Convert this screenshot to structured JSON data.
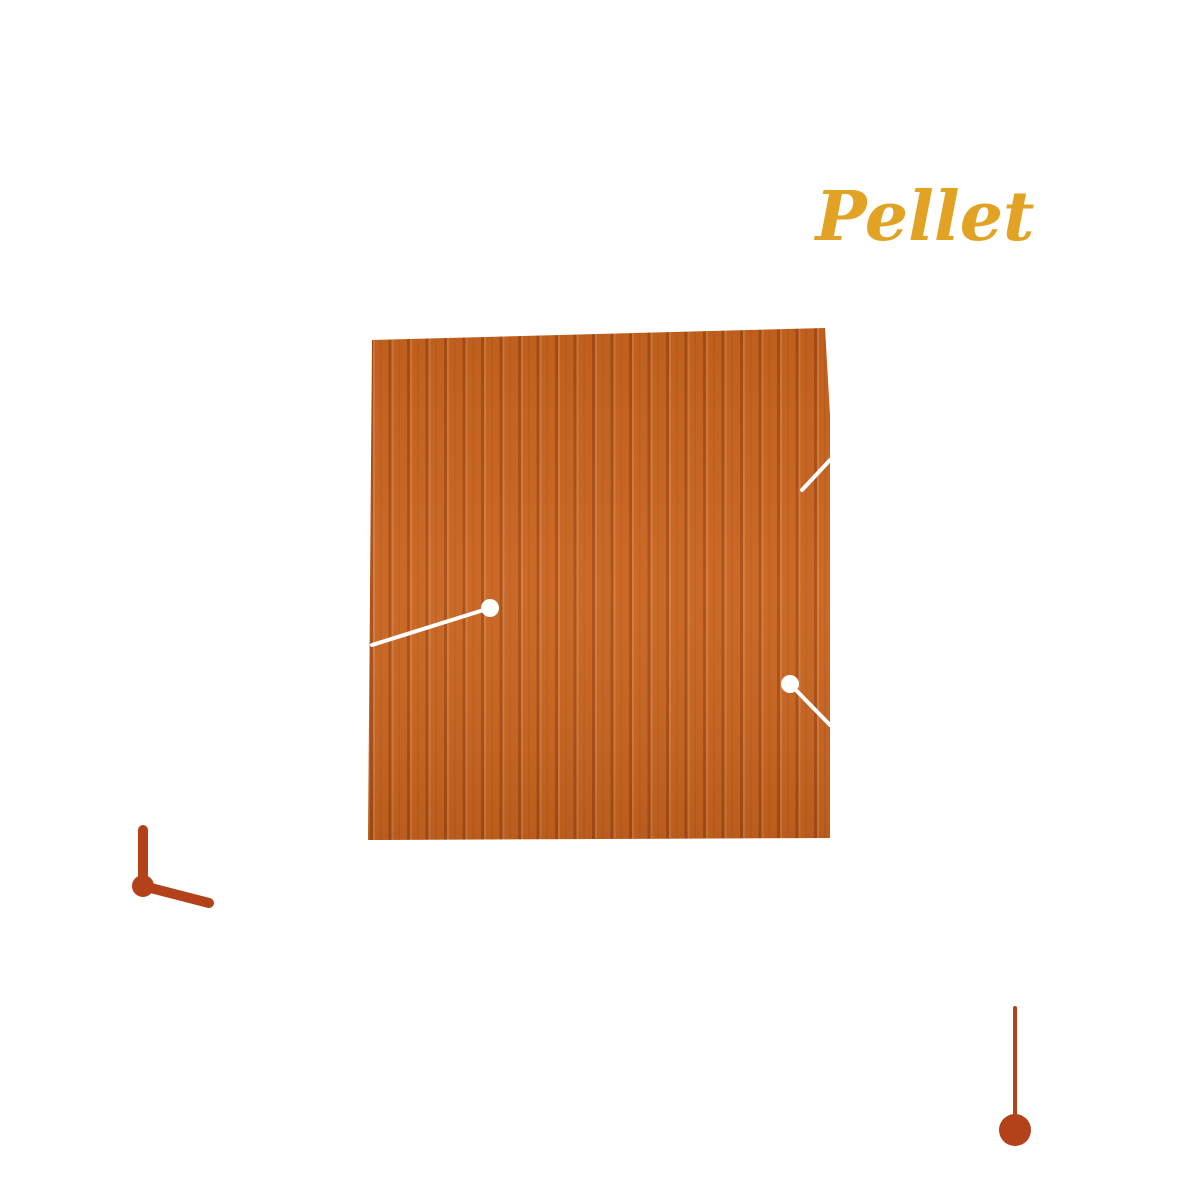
{
  "title": "Pellet"
}
